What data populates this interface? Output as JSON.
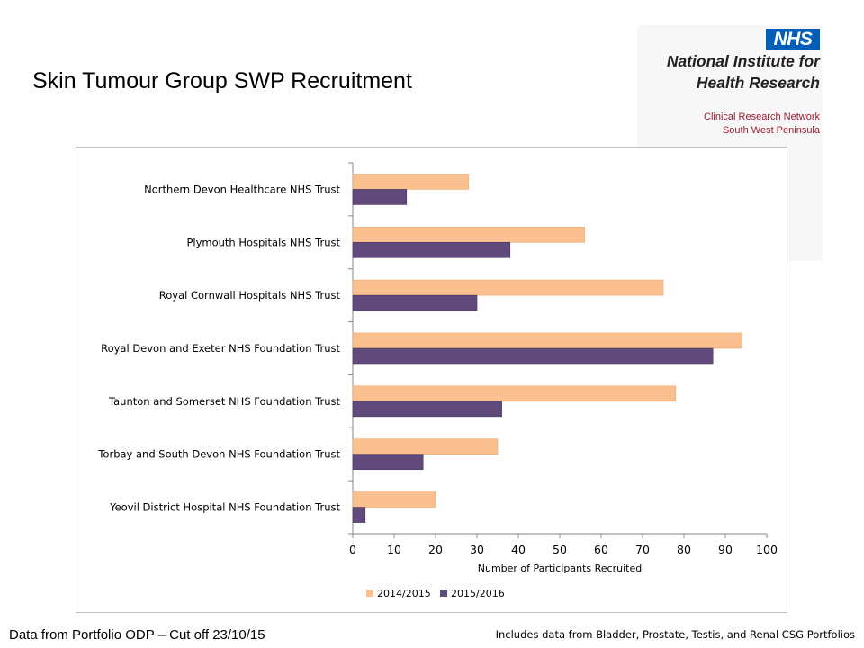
{
  "slide": {
    "title": "Skin Tumour Group SWP Recruitment",
    "footer_left": "Data from Portfolio ODP – Cut off 23/10/15",
    "footer_right": "Includes data from Bladder, Prostate, Testis, and Renal CSG Portfolios"
  },
  "logo": {
    "badge": "NHS",
    "line1": "National Institute for",
    "line2": "Health Research",
    "line3": "Clinical Research Network",
    "line4": "South West Peninsula",
    "badge_color": "#005eb8",
    "subtitle_color": "#9b1b30"
  },
  "chart_data": {
    "type": "bar",
    "orientation": "horizontal",
    "categories": [
      "Northern Devon Healthcare NHS Trust",
      "Plymouth Hospitals NHS Trust",
      "Royal Cornwall Hospitals NHS Trust",
      "Royal Devon and Exeter NHS Foundation Trust",
      "Taunton and Somerset NHS Foundation Trust",
      "Torbay and South Devon NHS Foundation Trust",
      "Yeovil District Hospital NHS Foundation Trust"
    ],
    "series": [
      {
        "name": "2014/2015",
        "color": "#fac090",
        "values": [
          28,
          56,
          75,
          94,
          78,
          35,
          20
        ]
      },
      {
        "name": "2015/2016",
        "color": "#604a7b",
        "values": [
          13,
          38,
          30,
          87,
          36,
          17,
          3
        ]
      }
    ],
    "xlabel": "Number of Participants Recruited",
    "xlim": [
      0,
      100
    ],
    "xticks": [
      0,
      10,
      20,
      30,
      40,
      50,
      60,
      70,
      80,
      90,
      100
    ],
    "grid": false,
    "legend_position": "bottom"
  }
}
